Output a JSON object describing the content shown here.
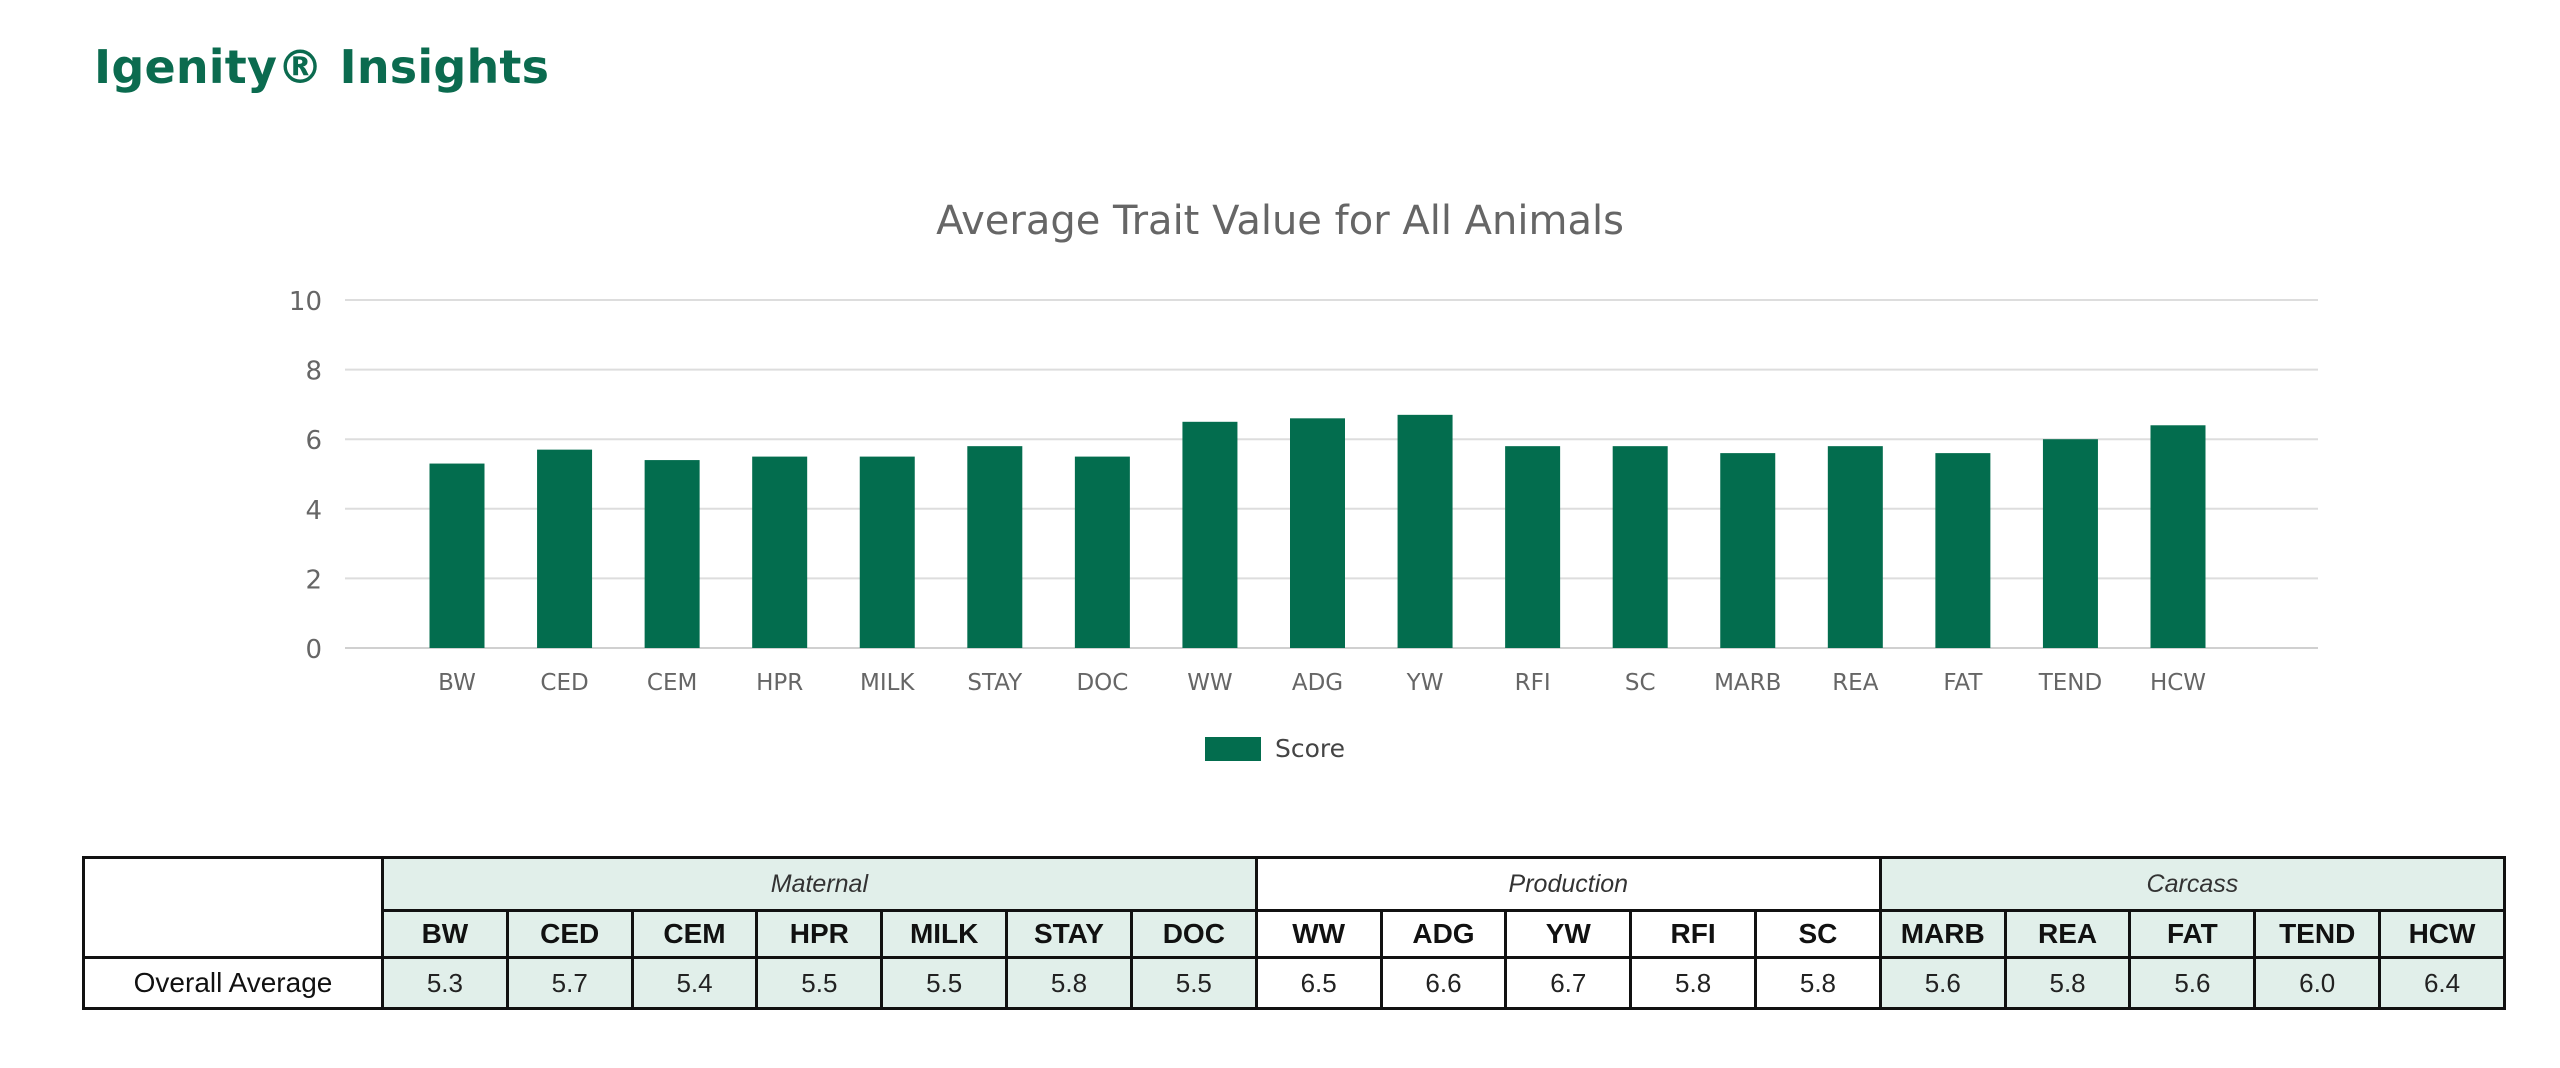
{
  "page": {
    "title": "Igenity® Insights"
  },
  "chart_data": {
    "type": "bar",
    "title": "Average Trait Value for All Animals",
    "categories": [
      "BW",
      "CED",
      "CEM",
      "HPR",
      "MILK",
      "STAY",
      "DOC",
      "WW",
      "ADG",
      "YW",
      "RFI",
      "SC",
      "MARB",
      "REA",
      "FAT",
      "TEND",
      "HCW"
    ],
    "series": [
      {
        "name": "Score",
        "values": [
          5.3,
          5.7,
          5.4,
          5.5,
          5.5,
          5.8,
          5.5,
          6.5,
          6.6,
          6.7,
          5.8,
          5.8,
          5.6,
          5.8,
          5.6,
          6.0,
          6.4
        ],
        "color": "#036d4e"
      }
    ],
    "y_ticks": [
      0,
      2,
      4,
      6,
      8,
      10
    ],
    "ylim": [
      0,
      10
    ],
    "grid": true,
    "legend": "bottom-center"
  },
  "table": {
    "row_label": "Overall Average",
    "groups": [
      {
        "label": "Maternal",
        "tinted": true,
        "traits": [
          {
            "code": "BW",
            "value": "5.3"
          },
          {
            "code": "CED",
            "value": "5.7"
          },
          {
            "code": "CEM",
            "value": "5.4"
          },
          {
            "code": "HPR",
            "value": "5.5"
          },
          {
            "code": "MILK",
            "value": "5.5"
          },
          {
            "code": "STAY",
            "value": "5.8"
          },
          {
            "code": "DOC",
            "value": "5.5"
          }
        ]
      },
      {
        "label": "Production",
        "tinted": false,
        "traits": [
          {
            "code": "WW",
            "value": "6.5"
          },
          {
            "code": "ADG",
            "value": "6.6"
          },
          {
            "code": "YW",
            "value": "6.7"
          },
          {
            "code": "RFI",
            "value": "5.8"
          },
          {
            "code": "SC",
            "value": "5.8"
          }
        ]
      },
      {
        "label": "Carcass",
        "tinted": true,
        "traits": [
          {
            "code": "MARB",
            "value": "5.6"
          },
          {
            "code": "REA",
            "value": "5.8"
          },
          {
            "code": "FAT",
            "value": "5.6"
          },
          {
            "code": "TEND",
            "value": "6.0"
          },
          {
            "code": "HCW",
            "value": "6.4"
          }
        ]
      }
    ]
  },
  "colors": {
    "brand": "#0b6b4f",
    "bar": "#036d4e",
    "tint": "#e1efea"
  }
}
